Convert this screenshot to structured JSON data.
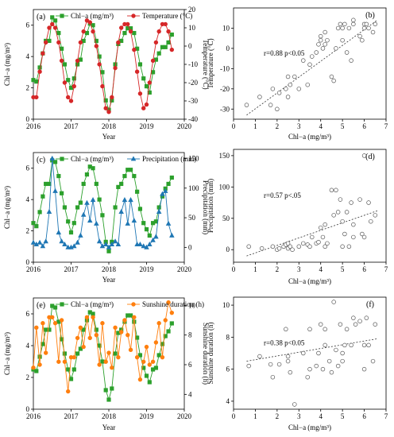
{
  "chart_data": [
    {
      "id": "a",
      "type": "line",
      "panel_label": "(a)",
      "xlabel": "Year",
      "ylabel_left": "Chl−a (mg/m³)",
      "ylabel_right": "Temperature (°C)",
      "xlim": [
        2016,
        2020
      ],
      "ylim_left": [
        0,
        7
      ],
      "ylim_right": [
        -40,
        20
      ],
      "x_ticks": [
        "2016",
        "2017",
        "2018",
        "2019",
        "2020"
      ],
      "y_ticks_left": [
        "0",
        "2",
        "4",
        "6"
      ],
      "y_ticks_right": [
        "-40",
        "-30",
        "-20",
        "-10",
        "0",
        "10",
        "20"
      ],
      "legend_position": "top",
      "series": [
        {
          "name": "Chl−a (mg/m³)",
          "axis": "left",
          "color": "#2ca02c",
          "marker": "square",
          "x": [
            2016.0,
            2016.08,
            2016.17,
            2016.25,
            2016.33,
            2016.42,
            2016.5,
            2016.58,
            2016.67,
            2016.75,
            2016.83,
            2016.92,
            2017.0,
            2017.08,
            2017.17,
            2017.25,
            2017.33,
            2017.42,
            2017.5,
            2017.58,
            2017.67,
            2017.75,
            2017.83,
            2017.92,
            2018.0,
            2018.08,
            2018.17,
            2018.25,
            2018.33,
            2018.42,
            2018.5,
            2018.58,
            2018.67,
            2018.75,
            2018.83,
            2018.92,
            2019.0,
            2019.08,
            2019.17,
            2019.25,
            2019.33,
            2019.42,
            2019.5,
            2019.58,
            2019.67
          ],
          "values": [
            2.5,
            2.4,
            3.3,
            4.2,
            5.0,
            5.0,
            6.5,
            6.3,
            5.5,
            4.5,
            3.5,
            2.5,
            2.0,
            2.6,
            3.5,
            3.8,
            5.0,
            5.5,
            6.1,
            6.0,
            5.0,
            4.0,
            3.0,
            1.2,
            0.6,
            1.2,
            3.5,
            4.8,
            5.0,
            5.5,
            5.8,
            5.8,
            5.5,
            4.5,
            3.5,
            2.6,
            2.1,
            1.7,
            3.0,
            3.8,
            4.2,
            4.6,
            4.6,
            4.9,
            5.4
          ]
        },
        {
          "name": "Temperature (°C)",
          "axis": "right",
          "color": "#d62728",
          "marker": "circle",
          "x": [
            2016.0,
            2016.08,
            2016.17,
            2016.25,
            2016.33,
            2016.42,
            2016.5,
            2016.58,
            2016.67,
            2016.75,
            2016.83,
            2016.92,
            2017.0,
            2017.08,
            2017.17,
            2017.25,
            2017.33,
            2017.42,
            2017.5,
            2017.58,
            2017.67,
            2017.75,
            2017.83,
            2017.92,
            2018.0,
            2018.08,
            2018.17,
            2018.25,
            2018.33,
            2018.42,
            2018.5,
            2018.58,
            2018.67,
            2018.75,
            2018.83,
            2018.92,
            2019.0,
            2019.08,
            2019.17,
            2019.25,
            2019.33,
            2019.42,
            2019.5,
            2019.58,
            2019.67
          ],
          "values": [
            -28,
            -28,
            -14,
            -4,
            2,
            10,
            12,
            10,
            2,
            -8,
            -20,
            -28,
            -30,
            -22,
            -8,
            2,
            8,
            14,
            13,
            8,
            0,
            -10,
            -22,
            -34,
            -36,
            -28,
            -12,
            2,
            10,
            12,
            12,
            8,
            -2,
            -14,
            -26,
            -34,
            -32,
            -20,
            -8,
            2,
            8,
            12,
            12,
            8,
            -2
          ]
        }
      ]
    },
    {
      "id": "b",
      "type": "scatter",
      "panel_label": "(b)",
      "xlabel": "Chl−a (mg/m³)",
      "ylabel": "Temperature (°C)",
      "xlim": [
        0,
        7
      ],
      "ylim": [
        -35,
        20
      ],
      "x_ticks": [
        "0",
        "1",
        "2",
        "3",
        "4",
        "5",
        "6",
        "7"
      ],
      "y_ticks": [
        "-30",
        "-20",
        "-10",
        "0",
        "10"
      ],
      "annotation": "r=0.88  p<0.05",
      "fit_line": {
        "x": [
          0.6,
          6.6
        ],
        "y": [
          -33,
          14
        ]
      },
      "points": {
        "x": [
          0.6,
          1.2,
          1.7,
          1.8,
          2.0,
          2.1,
          2.4,
          2.5,
          2.5,
          2.6,
          2.8,
          3.0,
          3.2,
          3.4,
          3.5,
          3.6,
          3.8,
          3.9,
          4.0,
          4.0,
          4.1,
          4.2,
          4.2,
          4.3,
          4.5,
          4.6,
          4.7,
          4.8,
          4.9,
          5.0,
          5.0,
          5.1,
          5.2,
          5.3,
          5.4,
          5.5,
          5.5,
          5.8,
          5.9,
          6.0,
          6.0,
          6.1,
          6.2,
          6.4,
          6.5
        ],
        "y": [
          -28,
          -24,
          -28,
          -20,
          -30,
          -22,
          -20,
          -24,
          -14,
          -18,
          -14,
          -20,
          -6,
          -18,
          -8,
          -4,
          -2,
          2,
          4,
          6,
          0,
          2,
          8,
          4,
          -14,
          -16,
          0,
          10,
          12,
          4,
          10,
          12,
          -2,
          10,
          -6,
          12,
          14,
          6,
          4,
          10,
          12,
          12,
          10,
          8,
          12
        ]
      }
    },
    {
      "id": "c",
      "type": "line",
      "panel_label": "(c)",
      "xlabel": "Year",
      "ylabel_left": "Chl−a (mg/m³)",
      "ylabel_right": "Precipitation (mm)",
      "xlim": [
        2016,
        2020
      ],
      "ylim_left": [
        0,
        7
      ],
      "ylim_right": [
        -25,
        160
      ],
      "x_ticks": [
        "2016",
        "2017",
        "2018",
        "2019",
        "2020"
      ],
      "y_ticks_left": [
        "0",
        "2",
        "4",
        "6"
      ],
      "y_ticks_right": [
        "0",
        "50",
        "100",
        "150"
      ],
      "legend_position": "top",
      "series": [
        {
          "name": "Chl−a (mg/m³)",
          "axis": "left",
          "color": "#2ca02c",
          "marker": "square",
          "x": [
            2016.0,
            2016.08,
            2016.17,
            2016.25,
            2016.33,
            2016.42,
            2016.5,
            2016.58,
            2016.67,
            2016.75,
            2016.83,
            2016.92,
            2017.0,
            2017.08,
            2017.17,
            2017.25,
            2017.33,
            2017.42,
            2017.5,
            2017.58,
            2017.67,
            2017.75,
            2017.83,
            2017.92,
            2018.0,
            2018.08,
            2018.17,
            2018.25,
            2018.33,
            2018.42,
            2018.5,
            2018.58,
            2018.67,
            2018.75,
            2018.83,
            2018.92,
            2019.0,
            2019.08,
            2019.17,
            2019.25,
            2019.33,
            2019.42,
            2019.5,
            2019.58,
            2019.67
          ],
          "values": [
            2.5,
            2.3,
            3.2,
            4.2,
            5.0,
            5.0,
            6.5,
            6.4,
            5.5,
            4.4,
            3.5,
            2.6,
            1.9,
            2.5,
            3.5,
            3.8,
            5.0,
            5.6,
            6.1,
            6.0,
            5.0,
            4.0,
            3.0,
            1.3,
            0.7,
            1.3,
            3.5,
            4.8,
            5.0,
            5.5,
            5.9,
            5.9,
            5.5,
            4.5,
            3.4,
            2.5,
            2.1,
            1.7,
            2.5,
            2.6,
            3.5,
            4.2,
            4.7,
            5.0,
            5.4
          ]
        },
        {
          "name": "Precipitation (mm)",
          "axis": "right",
          "color": "#1f77b4",
          "marker": "triangle",
          "x": [
            2016.0,
            2016.08,
            2016.17,
            2016.25,
            2016.33,
            2016.42,
            2016.5,
            2016.58,
            2016.67,
            2016.75,
            2016.83,
            2016.92,
            2017.0,
            2017.08,
            2017.17,
            2017.25,
            2017.33,
            2017.42,
            2017.5,
            2017.58,
            2017.67,
            2017.75,
            2017.83,
            2017.92,
            2018.0,
            2018.08,
            2018.17,
            2018.25,
            2018.33,
            2018.42,
            2018.5,
            2018.58,
            2018.67,
            2018.75,
            2018.83,
            2018.92,
            2019.0,
            2019.08,
            2019.17,
            2019.25,
            2019.33,
            2019.42,
            2019.5,
            2019.58,
            2019.67
          ],
          "values": [
            8,
            5,
            8,
            2,
            10,
            60,
            150,
            95,
            25,
            10,
            5,
            0,
            0,
            2,
            8,
            20,
            55,
            75,
            45,
            80,
            40,
            10,
            2,
            5,
            0,
            5,
            10,
            5,
            60,
            80,
            40,
            80,
            45,
            5,
            5,
            2,
            0,
            5,
            12,
            18,
            60,
            90,
            95,
            40,
            20
          ]
        }
      ]
    },
    {
      "id": "d",
      "type": "scatter",
      "panel_label": "(d)",
      "xlabel": "Chl−a (mg/m³)",
      "ylabel": "Precipitation (mm)",
      "xlim": [
        0,
        7
      ],
      "ylim": [
        -20,
        160
      ],
      "x_ticks": [
        "0",
        "1",
        "2",
        "3",
        "4",
        "5",
        "6",
        "7"
      ],
      "y_ticks": [
        "0",
        "50",
        "100",
        "150"
      ],
      "annotation": "r=0.57  p<.05",
      "fit_line": {
        "x": [
          0.6,
          6.6
        ],
        "y": [
          -10,
          62
        ]
      },
      "points": {
        "x": [
          0.7,
          1.3,
          1.8,
          2.0,
          2.1,
          2.3,
          2.4,
          2.5,
          2.5,
          2.6,
          2.7,
          3.0,
          3.2,
          3.4,
          3.5,
          3.6,
          3.8,
          3.9,
          4.0,
          4.1,
          4.2,
          4.2,
          4.3,
          4.5,
          4.6,
          4.7,
          4.8,
          4.9,
          5.0,
          5.0,
          5.1,
          5.2,
          5.3,
          5.4,
          5.5,
          5.5,
          5.8,
          5.9,
          6.0,
          6.0,
          6.2,
          6.3,
          6.5
        ],
        "y": [
          5,
          2,
          5,
          0,
          2,
          5,
          8,
          2,
          10,
          5,
          0,
          5,
          10,
          8,
          5,
          20,
          10,
          12,
          35,
          20,
          5,
          40,
          10,
          95,
          55,
          95,
          60,
          80,
          5,
          45,
          25,
          60,
          5,
          75,
          40,
          20,
          80,
          25,
          20,
          150,
          75,
          45,
          55
        ]
      }
    },
    {
      "id": "e",
      "type": "line",
      "panel_label": "(e)",
      "xlabel": "Year",
      "ylabel_left": "Chl−a (mg/m³)",
      "ylabel_right": "Sunshine duration (h)",
      "xlim": [
        2016,
        2020
      ],
      "ylim_left": [
        0,
        7
      ],
      "ylim_right": [
        3,
        10.5
      ],
      "x_ticks": [
        "2016",
        "2017",
        "2018",
        "2019",
        "2020"
      ],
      "y_ticks_left": [
        "0",
        "2",
        "4",
        "6"
      ],
      "y_ticks_right": [
        "4",
        "6",
        "8",
        "10"
      ],
      "legend_position": "top",
      "series": [
        {
          "name": "Chl−a (mg/m³)",
          "axis": "left",
          "color": "#2ca02c",
          "marker": "square",
          "x": [
            2016.0,
            2016.08,
            2016.17,
            2016.25,
            2016.33,
            2016.42,
            2016.5,
            2016.58,
            2016.67,
            2016.75,
            2016.83,
            2016.92,
            2017.0,
            2017.08,
            2017.17,
            2017.25,
            2017.33,
            2017.42,
            2017.5,
            2017.58,
            2017.67,
            2017.75,
            2017.83,
            2017.92,
            2018.0,
            2018.08,
            2018.17,
            2018.25,
            2018.33,
            2018.42,
            2018.5,
            2018.58,
            2018.67,
            2018.75,
            2018.83,
            2018.92,
            2019.0,
            2019.08,
            2019.17,
            2019.25,
            2019.33,
            2019.42,
            2019.5,
            2019.58,
            2019.67
          ],
          "values": [
            2.5,
            2.4,
            3.3,
            4.1,
            5.0,
            5.0,
            6.5,
            6.4,
            5.5,
            4.4,
            3.5,
            2.5,
            1.9,
            2.5,
            3.5,
            3.8,
            5.0,
            5.6,
            6.1,
            6.0,
            5.0,
            4.0,
            3.0,
            1.2,
            0.6,
            1.3,
            3.5,
            4.8,
            5.0,
            5.5,
            5.9,
            5.9,
            5.5,
            4.5,
            3.4,
            2.6,
            2.1,
            1.7,
            2.5,
            2.6,
            3.4,
            4.1,
            4.6,
            4.9,
            5.4
          ]
        },
        {
          "name": "Sunshine duration (h)",
          "axis": "right",
          "color": "#ff7f0e",
          "marker": "circle",
          "x": [
            2016.0,
            2016.08,
            2016.17,
            2016.25,
            2016.33,
            2016.42,
            2016.5,
            2016.58,
            2016.67,
            2016.75,
            2016.83,
            2016.92,
            2017.0,
            2017.08,
            2017.17,
            2017.25,
            2017.33,
            2017.42,
            2017.5,
            2017.58,
            2017.67,
            2017.75,
            2017.83,
            2017.92,
            2018.0,
            2018.08,
            2018.17,
            2018.25,
            2018.33,
            2018.42,
            2018.5,
            2018.58,
            2018.67,
            2018.75,
            2018.83,
            2018.92,
            2019.0,
            2019.08,
            2019.17,
            2019.25,
            2019.33,
            2019.42,
            2019.5,
            2019.58,
            2019.67
          ],
          "values": [
            5.8,
            8.5,
            6.0,
            8.8,
            6.8,
            9.2,
            9.2,
            8.8,
            6.2,
            9.0,
            6.2,
            4.2,
            6.5,
            6.5,
            7.8,
            8.5,
            7.2,
            9.2,
            7.8,
            9.2,
            8.0,
            6.0,
            8.8,
            6.2,
            6.8,
            5.8,
            8.5,
            6.5,
            8.2,
            9.0,
            8.0,
            7.0,
            9.2,
            6.5,
            5.0,
            6.2,
            7.2,
            6.0,
            6.2,
            7.5,
            8.8,
            6.5,
            9.0,
            10.2,
            9.5
          ]
        }
      ]
    },
    {
      "id": "f",
      "type": "scatter",
      "panel_label": "(f)",
      "xlabel": "Chl−a (mg/m³)",
      "ylabel": "Sunshine duration (h)",
      "xlim": [
        0,
        7
      ],
      "ylim": [
        3.5,
        10.5
      ],
      "x_ticks": [
        "0",
        "1",
        "2",
        "3",
        "4",
        "5",
        "6",
        "7"
      ],
      "y_ticks": [
        "4",
        "6",
        "8",
        "10"
      ],
      "annotation": "r=0.38  p<0.05",
      "fit_line": {
        "x": [
          0.6,
          6.6
        ],
        "y": [
          6.5,
          7.9
        ]
      },
      "points": {
        "x": [
          0.7,
          1.2,
          1.7,
          1.8,
          2.1,
          2.4,
          2.5,
          2.5,
          2.6,
          2.8,
          3.2,
          3.4,
          3.5,
          3.5,
          3.8,
          3.9,
          4.0,
          4.1,
          4.2,
          4.2,
          4.4,
          4.5,
          4.6,
          4.7,
          4.8,
          4.9,
          5.0,
          5.0,
          5.1,
          5.2,
          5.4,
          5.5,
          5.6,
          5.8,
          6.0,
          6.0,
          6.1,
          6.2,
          6.4,
          6.5
        ],
        "y": [
          6.2,
          6.8,
          6.3,
          5.5,
          6.3,
          8.5,
          6.5,
          6.8,
          5.8,
          3.8,
          7.0,
          5.5,
          8.5,
          6.0,
          6.2,
          7.0,
          8.8,
          6.0,
          8.5,
          7.5,
          6.5,
          5.8,
          10.2,
          7.2,
          6.2,
          8.8,
          7.0,
          6.5,
          7.5,
          8.5,
          7.5,
          9.2,
          8.8,
          9.0,
          6.0,
          7.5,
          9.2,
          7.5,
          6.5,
          8.8
        ]
      }
    }
  ]
}
